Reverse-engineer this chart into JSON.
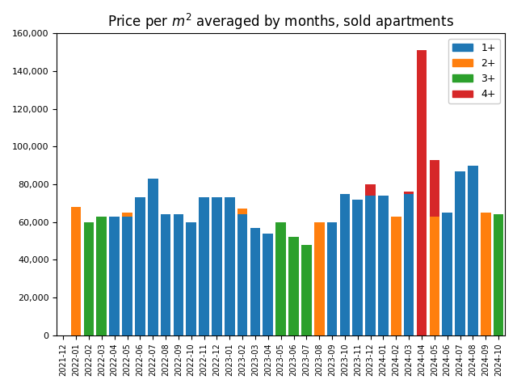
{
  "title": "Price per $m^2$ averaged by months, sold apartments",
  "categories": [
    "2021-12",
    "2022-01",
    "2022-02",
    "2022-03",
    "2022-04",
    "2022-05",
    "2022-06",
    "2022-07",
    "2022-08",
    "2022-09",
    "2022-10",
    "2022-11",
    "2022-12",
    "2023-01",
    "2023-02",
    "2023-03",
    "2023-04",
    "2023-05",
    "2023-06",
    "2023-07",
    "2023-08",
    "2023-09",
    "2023-10",
    "2023-11",
    "2023-12",
    "2024-01",
    "2024-02",
    "2024-03",
    "2024-04",
    "2024-05",
    "2024-06",
    "2024-07",
    "2024-08",
    "2024-09",
    "2024-10"
  ],
  "series": {
    "1+": [
      0,
      0,
      0,
      0,
      63000,
      63000,
      73000,
      83000,
      64000,
      64000,
      60000,
      73000,
      73000,
      73000,
      64000,
      57000,
      54000,
      0,
      0,
      0,
      0,
      60000,
      75000,
      72000,
      74000,
      74000,
      0,
      75000,
      0,
      0,
      65000,
      87000,
      90000,
      0,
      0
    ],
    "2+": [
      0,
      68000,
      0,
      0,
      0,
      65000,
      65000,
      80000,
      0,
      0,
      60000,
      0,
      65000,
      0,
      67000,
      0,
      0,
      0,
      0,
      0,
      60000,
      0,
      0,
      0,
      62000,
      62000,
      63000,
      0,
      0,
      63000,
      63000,
      0,
      0,
      65000,
      0
    ],
    "3+": [
      0,
      0,
      60000,
      63000,
      63000,
      62000,
      63000,
      80000,
      62000,
      58000,
      53000,
      58000,
      52000,
      52000,
      51000,
      57000,
      53000,
      60000,
      52000,
      48000,
      52000,
      56000,
      72000,
      72000,
      56000,
      63000,
      55000,
      56000,
      0,
      54000,
      55000,
      65000,
      65000,
      65000,
      64000
    ],
    "4+": [
      0,
      0,
      0,
      0,
      0,
      0,
      0,
      0,
      0,
      53000,
      0,
      53000,
      51000,
      51000,
      51000,
      0,
      53000,
      0,
      0,
      48000,
      40000,
      56000,
      56000,
      72000,
      80000,
      74000,
      35000,
      76000,
      151000,
      93000,
      63000,
      63000,
      63000,
      64000,
      64000
    ]
  },
  "colors": {
    "1+": "#1f77b4",
    "2+": "#ff7f0e",
    "3+": "#2ca02c",
    "4+": "#d62728"
  },
  "ylim": [
    0,
    160000
  ],
  "yticks": [
    0,
    20000,
    40000,
    60000,
    80000,
    100000,
    120000,
    140000,
    160000
  ]
}
